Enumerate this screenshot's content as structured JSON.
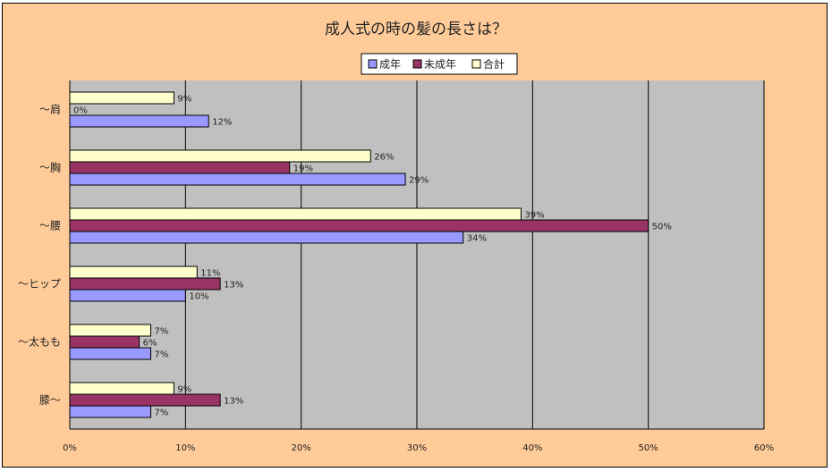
{
  "chart_data": {
    "type": "bar",
    "orientation": "horizontal",
    "title": "成人式の時の髪の長さは？",
    "categories": [
      "～肩",
      "～胸",
      "～腰",
      "～ヒップ",
      "～太もも",
      "膝～"
    ],
    "series": [
      {
        "name": "成年",
        "color": "#9999ff",
        "values": [
          12,
          29,
          34,
          10,
          7,
          7
        ]
      },
      {
        "name": "未成年",
        "color": "#993366",
        "values": [
          0,
          19,
          50,
          13,
          6,
          13
        ]
      },
      {
        "name": "合計",
        "color": "#ffffcc",
        "values": [
          9,
          26,
          39,
          11,
          7,
          9
        ]
      }
    ],
    "value_suffix": "%",
    "xlim": [
      0,
      60
    ],
    "xticks": [
      0,
      10,
      20,
      30,
      40,
      50,
      60
    ],
    "xtick_labels": [
      "0%",
      "10%",
      "20%",
      "30%",
      "40%",
      "50%",
      "60%"
    ],
    "grid": true,
    "legend_position": "top"
  },
  "colors": {
    "chart_background": "#ffcc99",
    "plot_background": "#c0c0c0"
  }
}
